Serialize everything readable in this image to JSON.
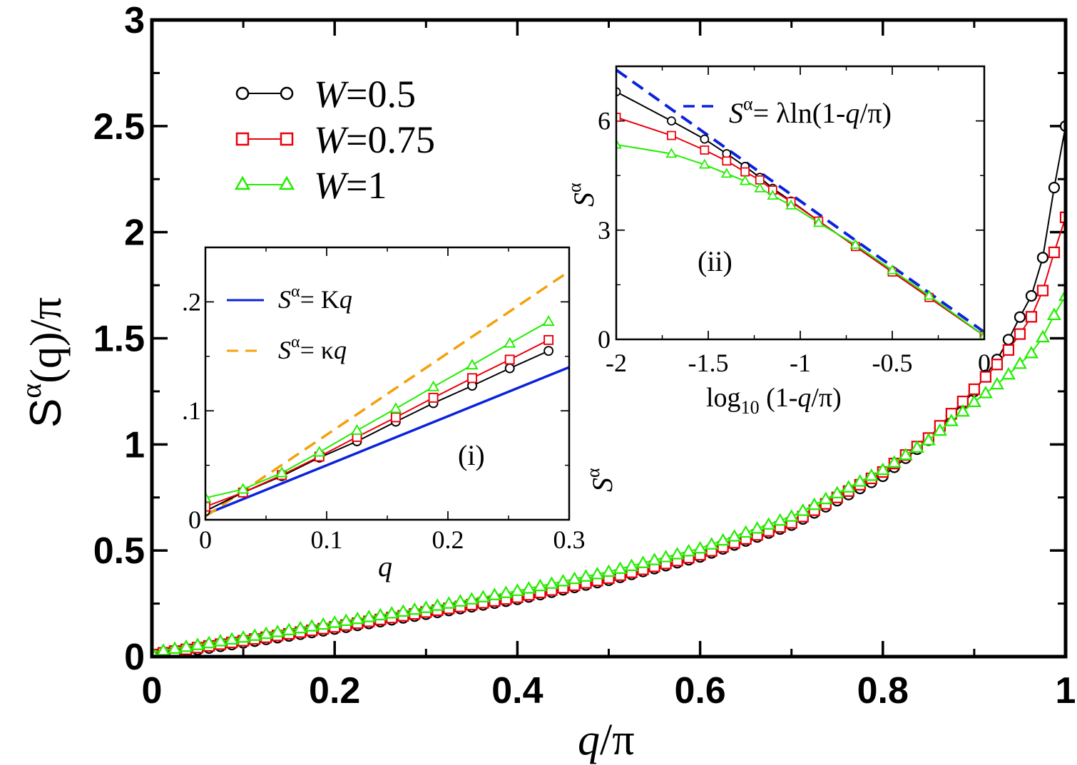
{
  "chart_data": [
    {
      "type": "line",
      "panel": "main",
      "xlabel": "q/π",
      "ylabel": "S^α(q)/π",
      "xlim": [
        0,
        1
      ],
      "ylim": [
        0,
        3
      ],
      "xticks": [
        "0",
        "0.2",
        "0.4",
        "0.6",
        "0.8",
        "1"
      ],
      "yticks": [
        "0",
        "0.5",
        "1",
        "1.5",
        "2",
        "2.5",
        "3"
      ],
      "legend": {
        "placement": "top-left",
        "entries": [
          "W=0.5",
          "W=0.75",
          "W=1"
        ]
      },
      "series": [
        {
          "name": "W=0.5",
          "color": "#000000",
          "marker": "circle",
          "x": [
            0,
            0.1,
            0.2,
            0.3,
            0.4,
            0.5,
            0.6,
            0.7,
            0.8,
            0.85,
            0.9,
            0.93,
            0.95,
            0.97,
            0.98,
            0.99,
            1.0
          ],
          "y": [
            0,
            0.065,
            0.13,
            0.2,
            0.27,
            0.36,
            0.47,
            0.62,
            0.85,
            1.02,
            1.25,
            1.43,
            1.6,
            1.76,
            2.0,
            2.28,
            2.5
          ]
        },
        {
          "name": "W=0.75",
          "color": "#e8000b",
          "marker": "square",
          "x": [
            0,
            0.1,
            0.2,
            0.3,
            0.4,
            0.5,
            0.6,
            0.7,
            0.8,
            0.85,
            0.9,
            0.93,
            0.95,
            0.97,
            0.98,
            0.99,
            1.0
          ],
          "y": [
            0.01,
            0.075,
            0.14,
            0.21,
            0.28,
            0.37,
            0.48,
            0.63,
            0.87,
            1.03,
            1.26,
            1.4,
            1.52,
            1.65,
            1.8,
            1.94,
            2.07
          ]
        },
        {
          "name": "W=1",
          "color": "#22ee00",
          "marker": "triangle",
          "x": [
            0,
            0.1,
            0.2,
            0.3,
            0.4,
            0.5,
            0.6,
            0.7,
            0.8,
            0.85,
            0.9,
            0.93,
            0.95,
            0.97,
            0.98,
            0.99,
            1.0
          ],
          "y": [
            0.02,
            0.09,
            0.16,
            0.23,
            0.31,
            0.4,
            0.51,
            0.66,
            0.88,
            1.02,
            1.2,
            1.3,
            1.38,
            1.46,
            1.55,
            1.63,
            1.7
          ]
        }
      ]
    },
    {
      "type": "line",
      "panel": "inset (i)",
      "annotation": "(i)",
      "xlabel": "q",
      "ylabel": "",
      "xlim": [
        0,
        0.3
      ],
      "ylim": [
        0,
        0.25
      ],
      "xticks": [
        "0",
        "0.1",
        "0.2",
        "0.3"
      ],
      "yticks": [
        "0",
        ".1",
        ".2"
      ],
      "legend": {
        "placement": "top-left",
        "entries": [
          "S^α = Kq",
          "S^α = κq"
        ]
      },
      "series": [
        {
          "name": "S^α = Kq",
          "color": "#0a22dd",
          "style": "solid",
          "x": [
            0,
            0.3
          ],
          "y": [
            0.005,
            0.14
          ]
        },
        {
          "name": "S^α = κq",
          "color": "#f5a00a",
          "style": "dashed",
          "x": [
            0,
            0.3
          ],
          "y": [
            0.003,
            0.228
          ]
        },
        {
          "name": "W=0.5",
          "color": "#000000",
          "marker": "circle",
          "x": [
            0,
            0.031,
            0.063,
            0.094,
            0.125,
            0.157,
            0.188,
            0.22,
            0.251,
            0.283
          ],
          "y": [
            0.008,
            0.025,
            0.04,
            0.057,
            0.072,
            0.09,
            0.107,
            0.123,
            0.139,
            0.155
          ]
        },
        {
          "name": "W=0.75",
          "color": "#e8000b",
          "marker": "square",
          "x": [
            0,
            0.031,
            0.063,
            0.094,
            0.125,
            0.157,
            0.188,
            0.22,
            0.251,
            0.283
          ],
          "y": [
            0.012,
            0.025,
            0.041,
            0.058,
            0.076,
            0.094,
            0.112,
            0.13,
            0.147,
            0.165
          ]
        },
        {
          "name": "W=1",
          "color": "#22ee00",
          "marker": "triangle",
          "x": [
            0,
            0.031,
            0.063,
            0.094,
            0.125,
            0.157,
            0.188,
            0.22,
            0.251,
            0.283
          ],
          "y": [
            0.02,
            0.028,
            0.043,
            0.062,
            0.082,
            0.102,
            0.122,
            0.142,
            0.162,
            0.182
          ]
        }
      ]
    },
    {
      "type": "line",
      "panel": "inset (ii)",
      "annotation": "(ii)",
      "xlabel": "log10 (1-q/π)",
      "ylabel": "S^α",
      "xlim": [
        -2,
        0
      ],
      "ylim": [
        0,
        7.5
      ],
      "xticks": [
        "-2",
        "-1.5",
        "-1",
        "-0.5",
        "0"
      ],
      "yticks": [
        "0",
        "3",
        "6"
      ],
      "legend": {
        "placement": "top-right",
        "entries": [
          "S^α = λln(1-q/π)"
        ]
      },
      "series": [
        {
          "name": "S^α = λln(1-q/π)",
          "color": "#0a22dd",
          "style": "dashed",
          "x": [
            -2,
            0
          ],
          "y": [
            7.4,
            0.2
          ]
        },
        {
          "name": "W=0.5",
          "color": "#000000",
          "marker": "circle",
          "x": [
            -2,
            -1.7,
            -1.52,
            -1.4,
            -1.3,
            -1.22,
            -1.15,
            -1.05,
            -0.9,
            -0.7,
            -0.5,
            -0.3,
            0
          ],
          "y": [
            6.8,
            6.0,
            5.5,
            5.1,
            4.75,
            4.45,
            4.15,
            3.8,
            3.25,
            2.55,
            1.85,
            1.15,
            0.1
          ]
        },
        {
          "name": "W=0.75",
          "color": "#e8000b",
          "marker": "square",
          "x": [
            -2,
            -1.7,
            -1.52,
            -1.4,
            -1.3,
            -1.22,
            -1.15,
            -1.05,
            -0.9,
            -0.7,
            -0.5,
            -0.3,
            0
          ],
          "y": [
            6.1,
            5.6,
            5.2,
            4.9,
            4.6,
            4.38,
            4.1,
            3.78,
            3.25,
            2.55,
            1.85,
            1.15,
            0.1
          ]
        },
        {
          "name": "W=1",
          "color": "#22ee00",
          "marker": "triangle",
          "x": [
            -2,
            -1.7,
            -1.52,
            -1.4,
            -1.3,
            -1.22,
            -1.15,
            -1.05,
            -0.9,
            -0.7,
            -0.5,
            -0.3,
            0
          ],
          "y": [
            5.35,
            5.1,
            4.8,
            4.55,
            4.35,
            4.15,
            3.95,
            3.68,
            3.2,
            2.6,
            1.9,
            1.2,
            0.1
          ]
        }
      ]
    }
  ],
  "labels": {
    "main_xlabel_q": "q",
    "main_xlabel_rest": "/π",
    "main_ylabel_S": "S",
    "main_ylabel_alpha": "α",
    "main_ylabel_rest": "(q)/π",
    "legend_W": "W",
    "legend_v1": "=0.5",
    "legend_v2": "=0.75",
    "legend_v3": "=1",
    "inset1_xlabel": "q",
    "inset1_tag": "(i)",
    "inset1_leg1_S": "S",
    "inset1_leg1_alpha": "α",
    "inset1_leg1_eq": "= K",
    "inset1_leg1_q": "q",
    "inset1_leg2_S": "S",
    "inset1_leg2_alpha": "α",
    "inset1_leg2_eq": "= κ",
    "inset1_leg2_q": "q",
    "inset2_tag": "(ii)",
    "inset2_ylabel_S": "S",
    "inset2_ylabel_alpha": "α",
    "inset2_xlabel_log": "log",
    "inset2_xlabel_sub": "10",
    "inset2_xlabel_rest_a": " (1-",
    "inset2_xlabel_q": "q",
    "inset2_xlabel_rest_b": "/π)",
    "inset2_leg_S": "S",
    "inset2_leg_alpha": "α",
    "inset2_leg_eq": "= λln(1-",
    "inset2_leg_q": "q",
    "inset2_leg_rest": "/π)",
    "stray_ylabel_S": "S",
    "stray_ylabel_alpha": "α"
  }
}
